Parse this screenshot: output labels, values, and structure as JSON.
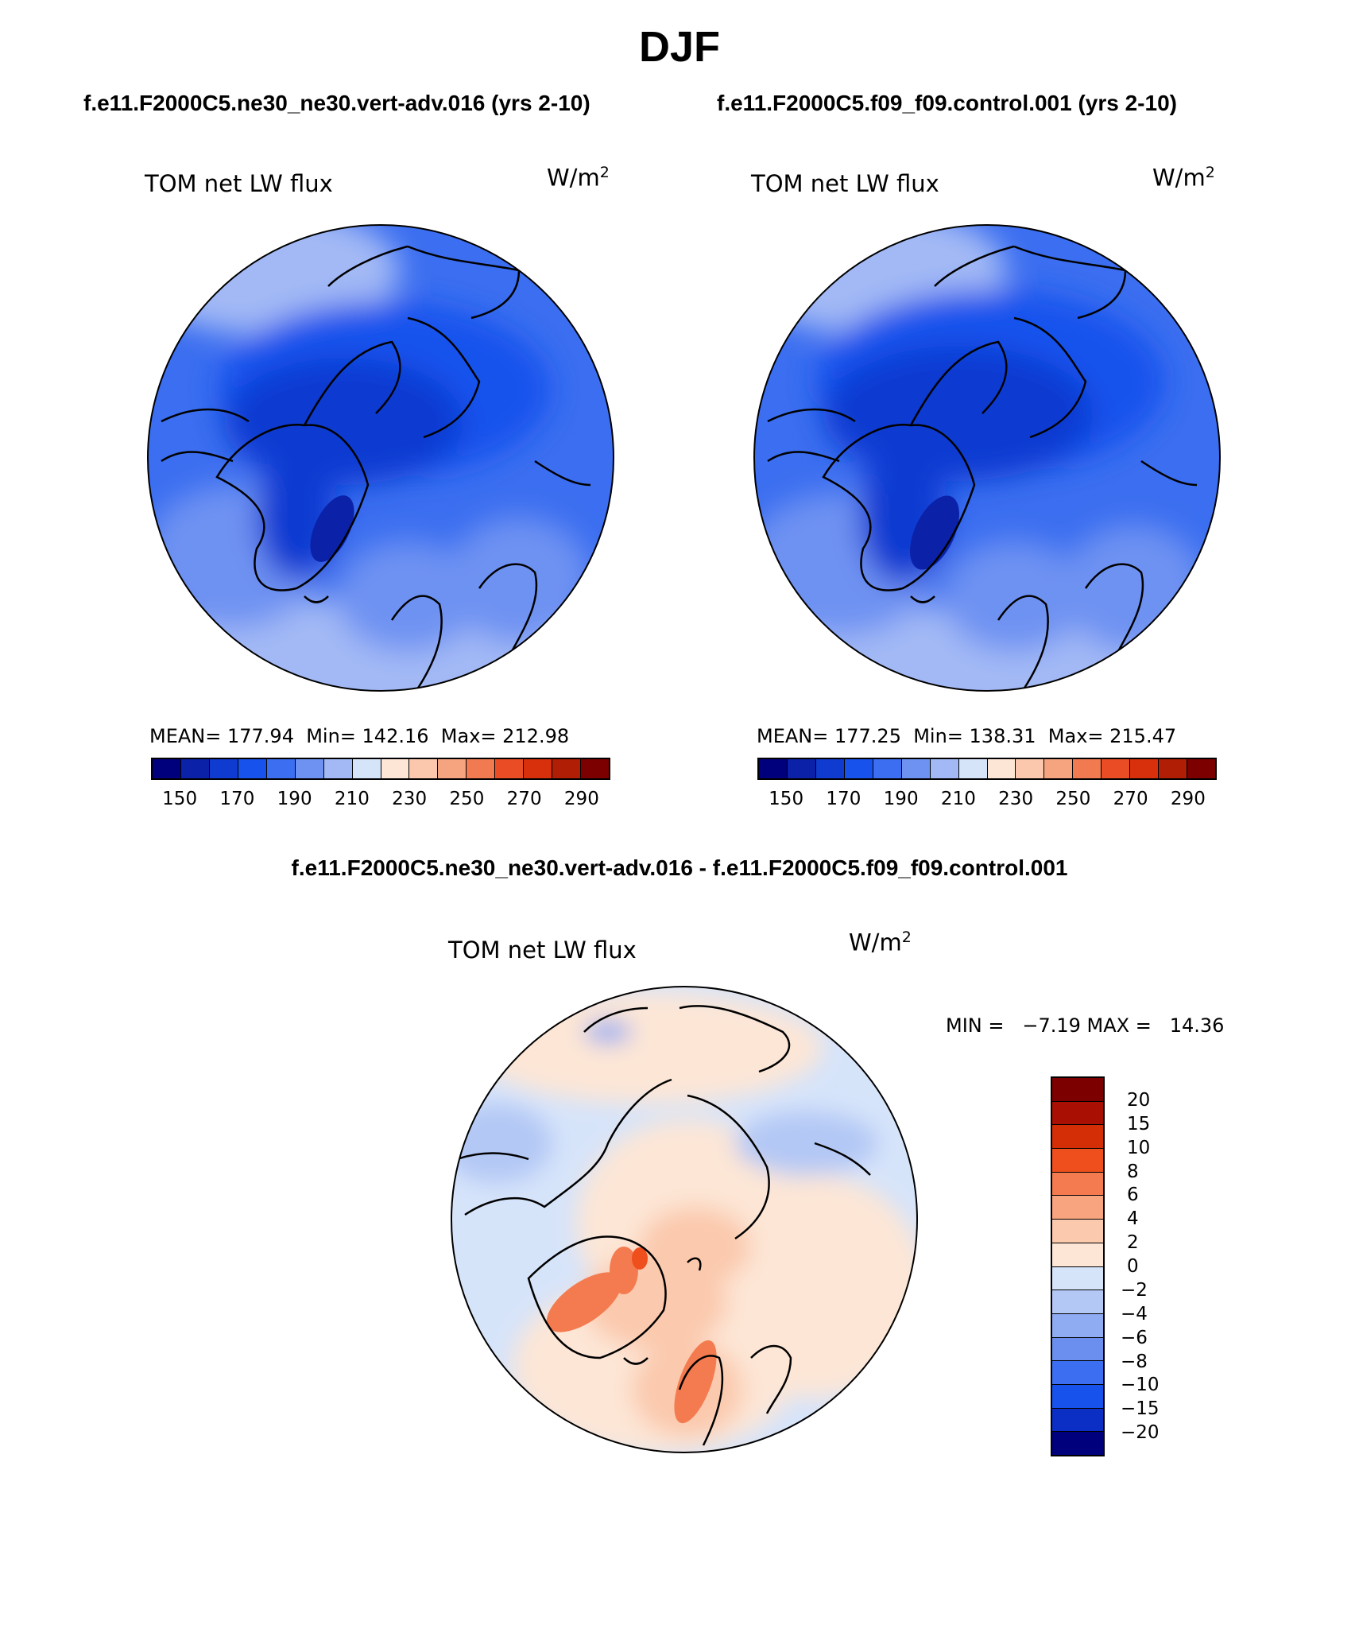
{
  "season": "DJF",
  "colors": {
    "scale": [
      "#00007d",
      "#0b22a8",
      "#0f3bd1",
      "#1752ed",
      "#3b6ef0",
      "#6e92f2",
      "#a3b9f5",
      "#d6e4fa",
      "#fde6d6",
      "#fbc7ad",
      "#f6a37f",
      "#f17a51",
      "#ea4d26",
      "#d8300c",
      "#b01e05",
      "#7d0000"
    ],
    "diff_scale": [
      "#7d0000",
      "#a90f03",
      "#d32e06",
      "#ee4f1d",
      "#f47b4f",
      "#f8a47f",
      "#fbc9ad",
      "#fde6d6",
      "#d6e4fa",
      "#b3c8f5",
      "#8fabf2",
      "#6b8fef",
      "#3b6ef0",
      "#1752ed",
      "#0b2fc4",
      "#00007d"
    ]
  },
  "panels": [
    {
      "case_title": "f.e11.F2000C5.ne30_ne30.vert-adv.016 (yrs 2-10)",
      "variable": "TOM net LW flux",
      "units_base": "W/m",
      "units_exp": "2",
      "stats": "MEAN= 177.94  Min= 142.16  Max= 212.98",
      "ticks": [
        "150",
        "170",
        "190",
        "210",
        "230",
        "250",
        "270",
        "290"
      ]
    },
    {
      "case_title": "f.e11.F2000C5.f09_f09.control.001 (yrs 2-10)",
      "variable": "TOM net LW flux",
      "units_base": "W/m",
      "units_exp": "2",
      "stats": "MEAN= 177.25  Min= 138.31  Max= 215.47",
      "ticks": [
        "150",
        "170",
        "190",
        "210",
        "230",
        "250",
        "270",
        "290"
      ]
    }
  ],
  "difference": {
    "title": "f.e11.F2000C5.ne30_ne30.vert-adv.016 - f.e11.F2000C5.f09_f09.control.001",
    "variable": "TOM net LW flux",
    "units_base": "W/m",
    "units_exp": "2",
    "stats": "MIN =   −7.19 MAX =   14.36",
    "ticks": [
      "20",
      "15",
      "10",
      "8",
      "6",
      "4",
      "2",
      "0",
      "−2",
      "−4",
      "−6",
      "−8",
      "−10",
      "−15",
      "−20"
    ]
  }
}
